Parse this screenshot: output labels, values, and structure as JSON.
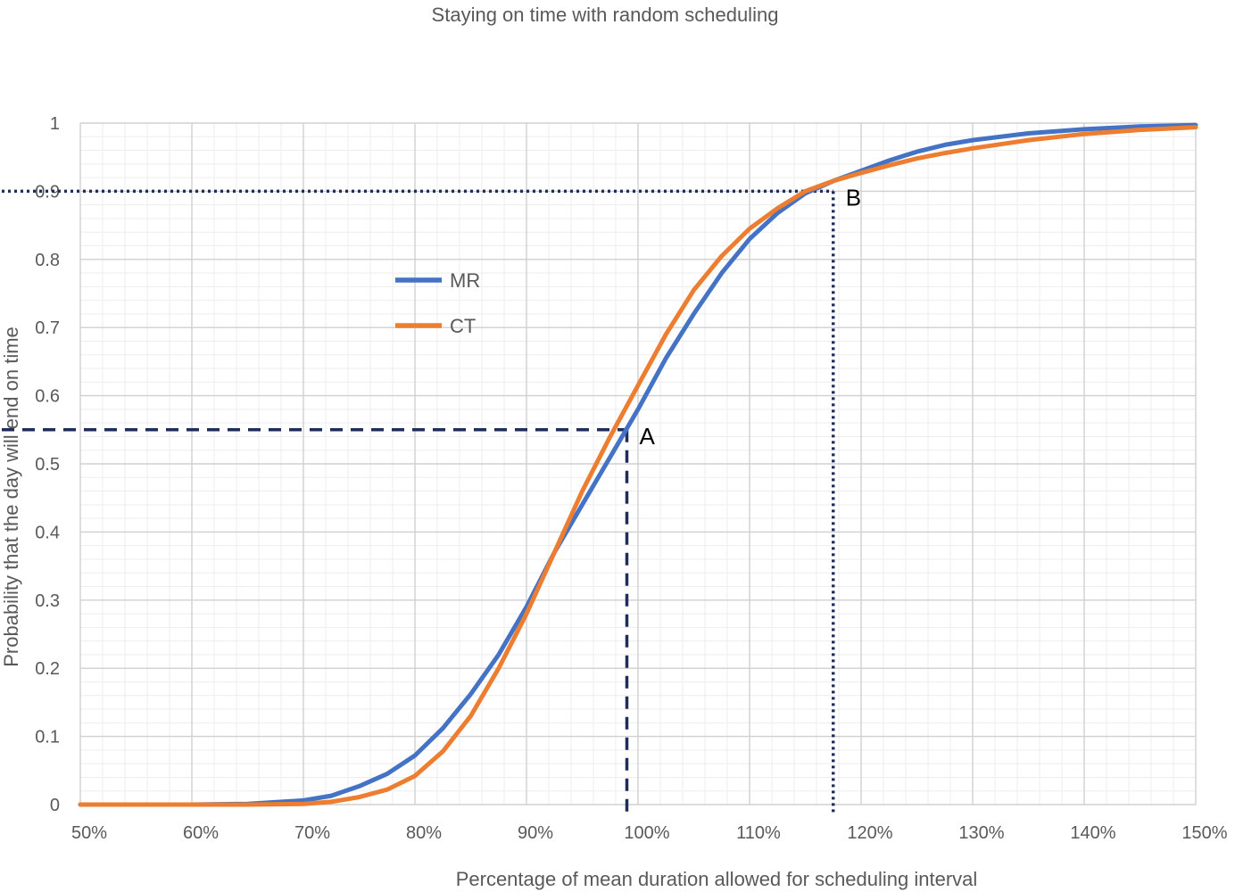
{
  "chart_data": {
    "type": "line",
    "title": "Staying on time with random scheduling",
    "xlabel": "Percentage of mean duration allowed for scheduling interval",
    "ylabel": "Probability that the day will end on time",
    "xlim": [
      50,
      150
    ],
    "ylim": [
      0,
      1
    ],
    "x_ticks": [
      "50%",
      "60%",
      "70%",
      "80%",
      "90%",
      "100%",
      "110%",
      "120%",
      "130%",
      "140%",
      "150%"
    ],
    "y_ticks": [
      "0",
      "0.1",
      "0.2",
      "0.3",
      "0.4",
      "0.5",
      "0.6",
      "0.7",
      "0.8",
      "0.9",
      "1"
    ],
    "grid": true,
    "legend_position": "upper-left",
    "x": [
      50,
      55,
      60,
      65,
      70,
      72.5,
      75,
      77.5,
      80,
      82.5,
      85,
      87.5,
      90,
      92.5,
      95,
      97.5,
      100,
      102.5,
      105,
      107.5,
      110,
      112.5,
      115,
      117.5,
      120,
      122.5,
      125,
      127.5,
      130,
      135,
      140,
      145,
      150
    ],
    "series": [
      {
        "name": "MR",
        "color": "#4472C4",
        "values": [
          0,
          0,
          0,
          0.001,
          0.006,
          0.013,
          0.027,
          0.045,
          0.072,
          0.112,
          0.162,
          0.22,
          0.29,
          0.37,
          0.44,
          0.51,
          0.58,
          0.655,
          0.72,
          0.78,
          0.83,
          0.868,
          0.897,
          0.915,
          0.93,
          0.945,
          0.958,
          0.968,
          0.975,
          0.985,
          0.991,
          0.995,
          0.997
        ]
      },
      {
        "name": "CT",
        "color": "#ED7D31",
        "values": [
          0,
          0,
          0,
          0,
          0.001,
          0.004,
          0.011,
          0.022,
          0.042,
          0.078,
          0.13,
          0.2,
          0.28,
          0.37,
          0.46,
          0.54,
          0.615,
          0.69,
          0.755,
          0.805,
          0.845,
          0.875,
          0.9,
          0.915,
          0.927,
          0.938,
          0.948,
          0.956,
          0.963,
          0.975,
          0.984,
          0.99,
          0.994
        ]
      }
    ],
    "annotations": [
      {
        "label": "A",
        "x": 99,
        "y": 0.55,
        "style": "dashed"
      },
      {
        "label": "B",
        "x": 117.5,
        "y": 0.9,
        "style": "dotted"
      }
    ],
    "reference_color": "#1F2D5C"
  }
}
